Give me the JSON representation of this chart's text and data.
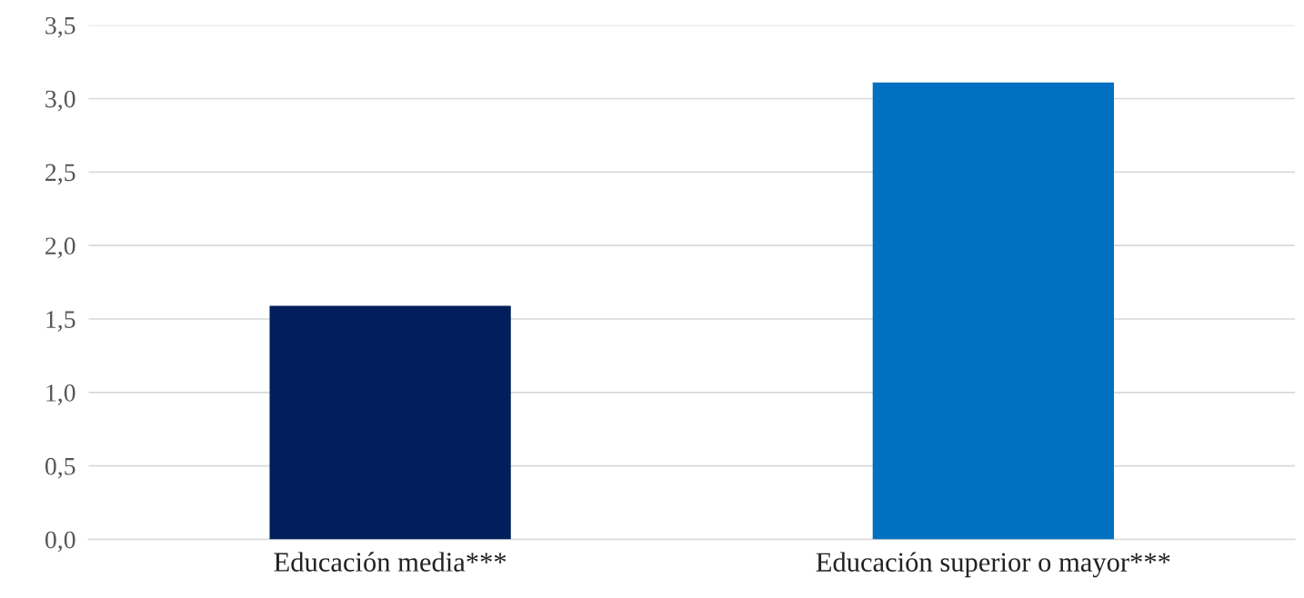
{
  "chart_data": {
    "type": "bar",
    "categories": [
      "Educación media***",
      "Educación superior o mayor***"
    ],
    "values": [
      1.59,
      3.11
    ],
    "colors": [
      "#001f5b",
      "#0070c0"
    ],
    "ylim": [
      0,
      3.5
    ],
    "yticks": [
      {
        "value": 0,
        "label": "0,0"
      },
      {
        "value": 0.5,
        "label": "0,5"
      },
      {
        "value": 1,
        "label": "1,0"
      },
      {
        "value": 1.5,
        "label": "1,5"
      },
      {
        "value": 2,
        "label": "2,0"
      },
      {
        "value": 2.5,
        "label": "2,5"
      },
      {
        "value": 3,
        "label": "3,0"
      },
      {
        "value": 3.5,
        "label": "3,5"
      }
    ],
    "grid": "y",
    "legend": false
  }
}
